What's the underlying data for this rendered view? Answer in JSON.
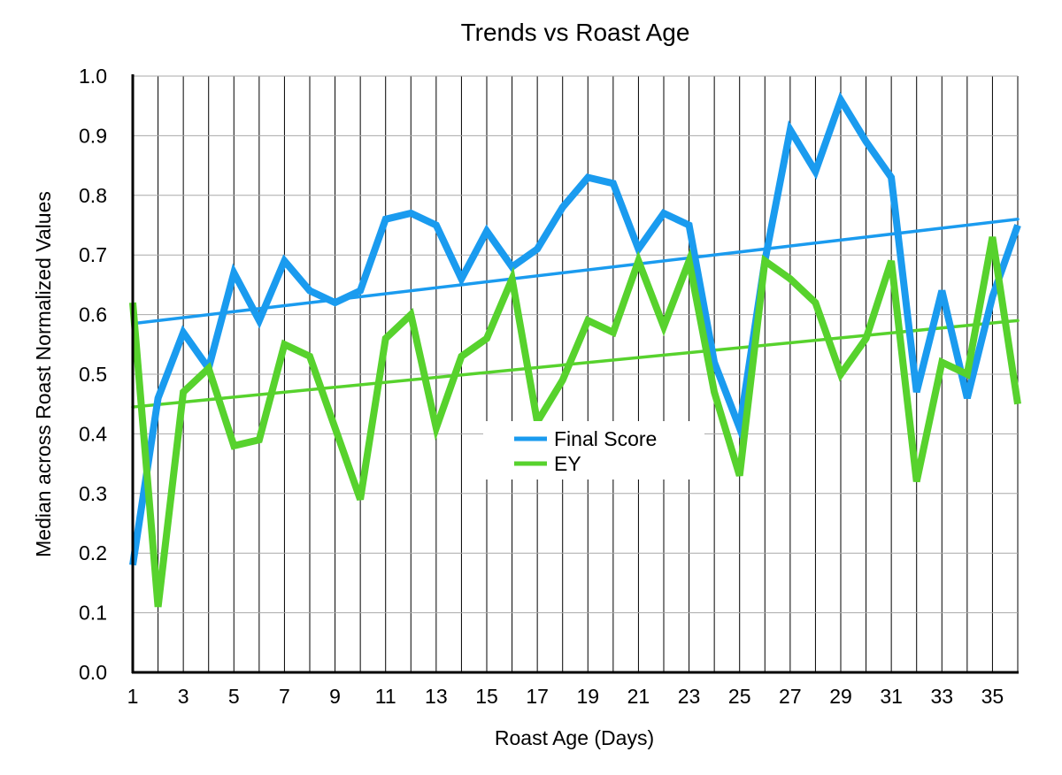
{
  "chart_data": {
    "type": "line",
    "title": "Trends vs Roast Age",
    "xlabel": "Roast Age (Days)",
    "ylabel": "Median across Roast Normalized Values",
    "x": [
      1,
      2,
      3,
      4,
      5,
      6,
      7,
      8,
      9,
      10,
      11,
      12,
      13,
      14,
      15,
      16,
      17,
      18,
      19,
      20,
      21,
      22,
      23,
      24,
      25,
      26,
      27,
      28,
      29,
      30,
      31,
      32,
      33,
      34,
      35,
      36
    ],
    "xlim": [
      1,
      36
    ],
    "ylim": [
      0,
      1
    ],
    "x_tick_labels": [
      "1",
      "3",
      "5",
      "7",
      "9",
      "11",
      "13",
      "15",
      "17",
      "19",
      "21",
      "23",
      "25",
      "27",
      "29",
      "31",
      "33",
      "35"
    ],
    "x_tick_values": [
      1,
      3,
      5,
      7,
      9,
      11,
      13,
      15,
      17,
      19,
      21,
      23,
      25,
      27,
      29,
      31,
      33,
      35
    ],
    "y_tick_labels": [
      "0.0",
      "0.1",
      "0.2",
      "0.3",
      "0.4",
      "0.5",
      "0.6",
      "0.7",
      "0.8",
      "0.9",
      "1.0"
    ],
    "y_tick_values": [
      0,
      0.1,
      0.2,
      0.3,
      0.4,
      0.5,
      0.6,
      0.7,
      0.8,
      0.9,
      1.0
    ],
    "grid": {
      "vertical": true,
      "horizontal": true
    },
    "legend_position": "center",
    "series": [
      {
        "name": "Final Score",
        "color": "#1a9bef",
        "values": [
          0.18,
          0.46,
          0.57,
          0.51,
          0.67,
          0.59,
          0.69,
          0.64,
          0.62,
          0.64,
          0.76,
          0.77,
          0.75,
          0.66,
          0.74,
          0.68,
          0.71,
          0.78,
          0.83,
          0.82,
          0.71,
          0.77,
          0.75,
          0.52,
          0.41,
          0.69,
          0.91,
          0.84,
          0.96,
          0.89,
          0.83,
          0.47,
          0.64,
          0.46,
          0.63,
          0.75
        ],
        "trend": [
          0.585,
          0.76
        ]
      },
      {
        "name": "EY",
        "color": "#57d22d",
        "values": [
          0.62,
          0.11,
          0.47,
          0.51,
          0.38,
          0.39,
          0.55,
          0.53,
          0.41,
          0.29,
          0.56,
          0.6,
          0.41,
          0.53,
          0.56,
          0.66,
          0.42,
          0.49,
          0.59,
          0.57,
          0.69,
          0.58,
          0.69,
          0.47,
          0.33,
          0.69,
          0.66,
          0.62,
          0.5,
          0.56,
          0.69,
          0.32,
          0.52,
          0.5,
          0.73,
          0.45
        ],
        "trend": [
          0.445,
          0.59
        ]
      }
    ]
  }
}
